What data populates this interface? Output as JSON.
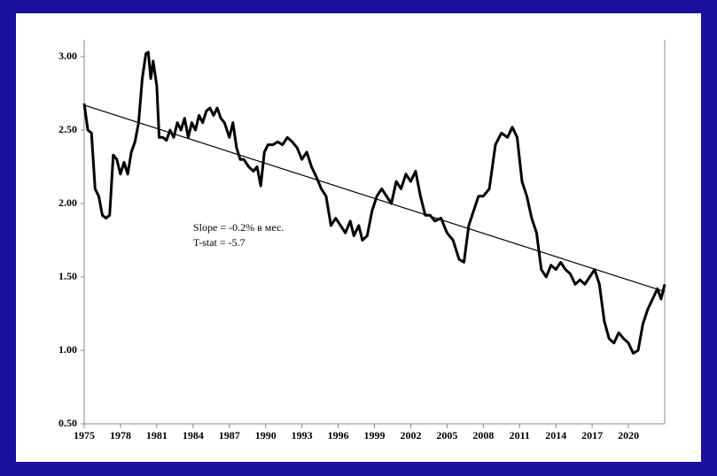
{
  "chart_data": {
    "type": "line",
    "annotations": [
      "Slope = -0.2% в мес.",
      "T-stat = -5.7"
    ],
    "xlim": [
      1975,
      2023
    ],
    "xticks": [
      1975,
      1978,
      1981,
      1984,
      1987,
      1990,
      1993,
      1996,
      1999,
      2002,
      2005,
      2008,
      2011,
      2014,
      2017,
      2020
    ],
    "ylim": [
      0.5,
      3.1
    ],
    "yticks": [
      {
        "value": 0.5,
        "label": "0.50"
      },
      {
        "value": 1,
        "label": "1.00"
      },
      {
        "value": 1.5,
        "label": "1.50"
      },
      {
        "value": 2,
        "label": "2.00"
      },
      {
        "value": 2.5,
        "label": "2.50"
      },
      {
        "value": 3,
        "label": "3.00"
      }
    ],
    "grid": false,
    "series": [
      {
        "color": "#000000",
        "x": [
          1975.0,
          1975.3,
          1975.6,
          1975.9,
          1976.2,
          1976.5,
          1976.8,
          1977.1,
          1977.4,
          1977.7,
          1978.0,
          1978.3,
          1978.6,
          1978.9,
          1979.2,
          1979.5,
          1979.8,
          1980.1,
          1980.3,
          1980.5,
          1980.7,
          1981.0,
          1981.2,
          1981.5,
          1981.8,
          1982.1,
          1982.4,
          1982.7,
          1983.0,
          1983.3,
          1983.6,
          1983.9,
          1984.2,
          1984.5,
          1984.8,
          1985.1,
          1985.4,
          1985.7,
          1986.0,
          1986.3,
          1986.6,
          1987.0,
          1987.3,
          1987.6,
          1987.9,
          1988.2,
          1988.6,
          1989.0,
          1989.3,
          1989.6,
          1989.9,
          1990.2,
          1990.6,
          1991.0,
          1991.4,
          1991.8,
          1992.2,
          1992.6,
          1993.0,
          1993.4,
          1993.8,
          1994.2,
          1994.6,
          1995.0,
          1995.4,
          1995.8,
          1996.2,
          1996.6,
          1997.0,
          1997.3,
          1997.7,
          1998.0,
          1998.4,
          1998.8,
          1999.2,
          1999.6,
          2000.0,
          2000.4,
          2000.8,
          2001.2,
          2001.6,
          2002.0,
          2002.4,
          2002.8,
          2003.2,
          2003.6,
          2004.0,
          2004.5,
          2005.0,
          2005.5,
          2006.0,
          2006.4,
          2006.8,
          2007.2,
          2007.6,
          2008.0,
          2008.5,
          2009.0,
          2009.5,
          2010.0,
          2010.4,
          2010.8,
          2011.2,
          2011.6,
          2012.0,
          2012.4,
          2012.8,
          2013.2,
          2013.6,
          2014.0,
          2014.4,
          2014.8,
          2015.2,
          2015.6,
          2016.0,
          2016.4,
          2016.8,
          2017.2,
          2017.6,
          2018.0,
          2018.4,
          2018.8,
          2019.2,
          2019.6,
          2020.0,
          2020.4,
          2020.8,
          2021.2,
          2021.6,
          2022.0,
          2022.4,
          2022.7,
          2023.0
        ],
        "values": [
          2.68,
          2.5,
          2.48,
          2.1,
          2.05,
          1.92,
          1.9,
          1.92,
          2.33,
          2.3,
          2.2,
          2.28,
          2.2,
          2.35,
          2.42,
          2.55,
          2.85,
          3.02,
          3.03,
          2.85,
          2.97,
          2.8,
          2.45,
          2.45,
          2.43,
          2.5,
          2.45,
          2.55,
          2.5,
          2.58,
          2.45,
          2.55,
          2.5,
          2.6,
          2.55,
          2.63,
          2.65,
          2.6,
          2.65,
          2.58,
          2.55,
          2.45,
          2.55,
          2.38,
          2.3,
          2.3,
          2.25,
          2.22,
          2.25,
          2.12,
          2.35,
          2.4,
          2.4,
          2.42,
          2.4,
          2.45,
          2.42,
          2.38,
          2.3,
          2.35,
          2.25,
          2.18,
          2.1,
          2.05,
          1.85,
          1.9,
          1.85,
          1.8,
          1.88,
          1.78,
          1.85,
          1.75,
          1.78,
          1.95,
          2.05,
          2.1,
          2.05,
          2.0,
          2.15,
          2.1,
          2.2,
          2.15,
          2.22,
          2.05,
          1.92,
          1.92,
          1.88,
          1.9,
          1.8,
          1.75,
          1.62,
          1.6,
          1.85,
          1.95,
          2.05,
          2.05,
          2.1,
          2.4,
          2.48,
          2.45,
          2.52,
          2.45,
          2.15,
          2.05,
          1.9,
          1.8,
          1.55,
          1.5,
          1.58,
          1.55,
          1.6,
          1.55,
          1.52,
          1.45,
          1.48,
          1.45,
          1.5,
          1.55,
          1.45,
          1.2,
          1.08,
          1.05,
          1.12,
          1.08,
          1.05,
          0.98,
          1.0,
          1.18,
          1.28,
          1.35,
          1.42,
          1.35,
          1.45
        ]
      },
      {
        "color": "#000000",
        "x": [
          1975,
          2023
        ],
        "values": [
          2.67,
          1.4
        ]
      }
    ]
  }
}
